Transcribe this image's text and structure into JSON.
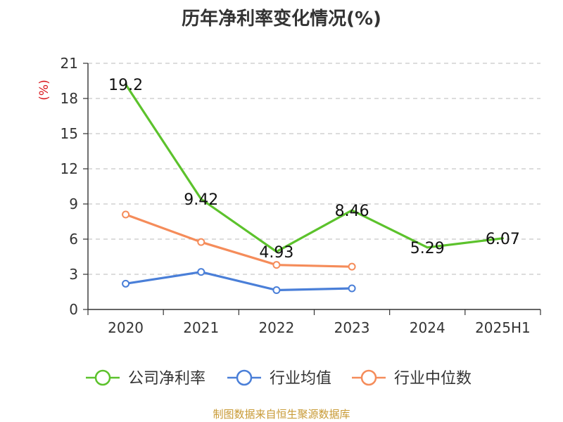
{
  "chart_data": {
    "type": "line",
    "title": "历年净利率变化情况(%)",
    "ylabel": "(%)",
    "xlabel": "",
    "categories": [
      "2020",
      "2021",
      "2022",
      "2023",
      "2024",
      "2025H1"
    ],
    "yticks": [
      "0",
      "3",
      "6",
      "9",
      "12",
      "15",
      "18",
      "21"
    ],
    "ylim": [
      0,
      21
    ],
    "grid": true,
    "legend_position": "bottom",
    "series": [
      {
        "name": "公司净利率",
        "color": "#5cc22c",
        "values": [
          19.2,
          9.42,
          4.93,
          8.46,
          5.29,
          6.07
        ],
        "labels": [
          "19.2",
          "9.42",
          "4.93",
          "8.46",
          "5.29",
          "6.07"
        ]
      },
      {
        "name": "行业均值",
        "color": "#4a7fd8",
        "values": [
          2.2,
          3.2,
          1.65,
          1.8,
          null,
          null
        ]
      },
      {
        "name": "行业中位数",
        "color": "#f58c5a",
        "values": [
          8.1,
          5.75,
          3.8,
          3.65,
          null,
          null
        ]
      }
    ]
  },
  "source": "制图数据来自恒生聚源数据库"
}
